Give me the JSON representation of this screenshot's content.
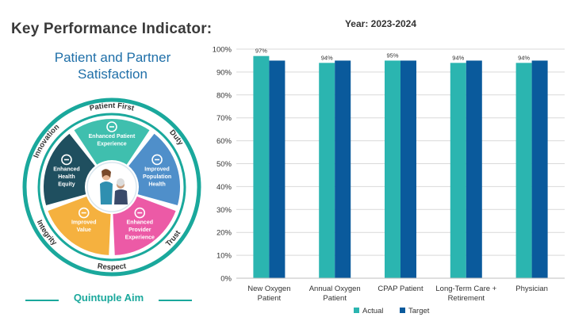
{
  "kpi_title": "Key Performance Indicator:",
  "subtitle_lines": [
    "Patient and Partner",
    "Satisfaction"
  ],
  "infographic": {
    "ring_labels": {
      "top": "Patient First",
      "right_top": "Duty",
      "right_bottom": "Trust",
      "bottom": "Respect",
      "left_bottom": "Integrity",
      "left_top": "Innovation"
    },
    "segments": [
      {
        "lines": [
          "Enhanced Patient",
          "Experience"
        ],
        "color": "#3fbfae",
        "icon": "patient-bed-icon"
      },
      {
        "lines": [
          "Improved",
          "Population",
          "Health"
        ],
        "color": "#4f8fca",
        "icon": "population-icon"
      },
      {
        "lines": [
          "Enhanced",
          "Provider",
          "Experience"
        ],
        "color": "#ec5aa6",
        "icon": "provider-icon"
      },
      {
        "lines": [
          "Improved",
          "Value"
        ],
        "color": "#f5b13f",
        "icon": "value-chart-icon"
      },
      {
        "lines": [
          "Enhanced",
          "Health",
          "Equity"
        ],
        "color": "#1f4f5f",
        "icon": "health-plus-icon"
      }
    ],
    "footer": "Quintuple Aim",
    "accent_color": "#1aa89c"
  },
  "chart_data": {
    "type": "bar",
    "title": "Year: 2023-2024",
    "categories": [
      [
        "New Oxygen",
        "Patient"
      ],
      [
        "Annual Oxygen",
        "Patient"
      ],
      [
        "CPAP Patient"
      ],
      [
        "Long-Term Care +",
        "Retirement"
      ],
      [
        "Physician"
      ]
    ],
    "series": [
      {
        "name": "Actual",
        "values": [
          97,
          94,
          95,
          94,
          94
        ],
        "color": "#2bb5b0",
        "labels": [
          "97%",
          "94%",
          "95%",
          "94%",
          "94%"
        ]
      },
      {
        "name": "Target",
        "values": [
          95,
          95,
          95,
          95,
          95
        ],
        "color": "#0a5a9c"
      }
    ],
    "ylim": [
      0,
      100
    ],
    "yticks": [
      0,
      10,
      20,
      30,
      40,
      50,
      60,
      70,
      80,
      90,
      100
    ],
    "ytick_labels": [
      "0%",
      "10%",
      "20%",
      "30%",
      "40%",
      "50%",
      "60%",
      "70%",
      "80%",
      "90%",
      "100%"
    ],
    "grid": true,
    "legend": "bottom"
  }
}
